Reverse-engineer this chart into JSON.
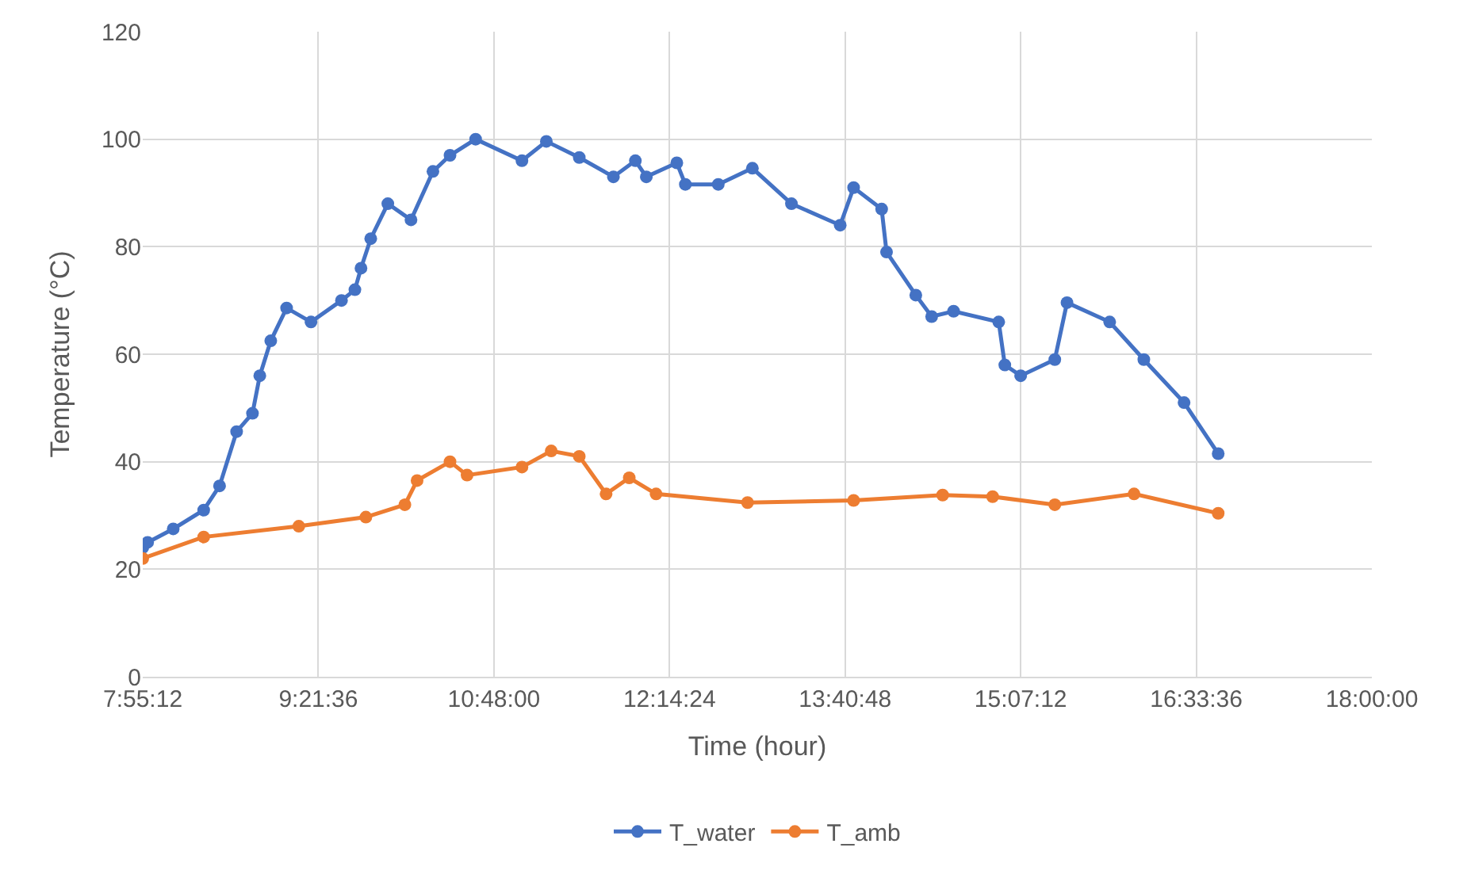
{
  "chart_data": {
    "type": "line",
    "xlabel": "Time (hour)",
    "ylabel": "Temperature (°C)",
    "xlim": [
      7.92,
      18.0
    ],
    "xticks": [
      {
        "value": 7.92,
        "label": "7:55:12"
      },
      {
        "value": 9.36,
        "label": "9:21:36"
      },
      {
        "value": 10.8,
        "label": "10:48:00"
      },
      {
        "value": 12.24,
        "label": "12:14:24"
      },
      {
        "value": 13.68,
        "label": "13:40:48"
      },
      {
        "value": 15.12,
        "label": "15:07:12"
      },
      {
        "value": 16.56,
        "label": "16:33:36"
      },
      {
        "value": 18.0,
        "label": "18:00:00"
      }
    ],
    "ylim": [
      0,
      120
    ],
    "yticks": [
      0,
      20,
      40,
      60,
      80,
      100,
      120
    ],
    "grid": true,
    "legend": "bottom",
    "marker": "circle",
    "line_style": "solid",
    "series": [
      {
        "name": "T_water",
        "color": "#4472c4",
        "x": [
          7.92,
          7.96,
          8.17,
          8.42,
          8.55,
          8.69,
          8.82,
          8.88,
          8.97,
          9.1,
          9.3,
          9.55,
          9.66,
          9.71,
          9.79,
          9.93,
          10.12,
          10.3,
          10.44,
          10.65,
          11.03,
          11.23,
          11.5,
          11.78,
          11.96,
          12.05,
          12.3,
          12.37,
          12.64,
          12.92,
          13.24,
          13.64,
          13.75,
          13.98,
          14.02,
          14.26,
          14.39,
          14.57,
          14.94,
          14.99,
          15.12,
          15.4,
          15.5,
          15.85,
          16.13,
          16.46,
          16.74
        ],
        "values": [
          24,
          25,
          27.5,
          31,
          35.5,
          45.6,
          49,
          56,
          62.5,
          68.6,
          66,
          70,
          72,
          76,
          81.5,
          88,
          85,
          94,
          97,
          100,
          96,
          99.6,
          96.6,
          93,
          96,
          93,
          95.6,
          91.6,
          91.6,
          94.6,
          88,
          84,
          91,
          87,
          79,
          71,
          67,
          68,
          66,
          58,
          56,
          59,
          69.6,
          66,
          59,
          51,
          41.5
        ]
      },
      {
        "name": "T_amb",
        "color": "#ed7d31",
        "x": [
          7.92,
          8.42,
          9.2,
          9.75,
          10.07,
          10.17,
          10.44,
          10.58,
          11.03,
          11.27,
          11.5,
          11.72,
          11.91,
          12.13,
          12.88,
          13.75,
          14.48,
          14.89,
          15.4,
          16.05,
          16.74
        ],
        "values": [
          22,
          26,
          28,
          29.7,
          32,
          36.5,
          40,
          37.5,
          39,
          42,
          41,
          34,
          37,
          34,
          32.4,
          32.8,
          33.8,
          33.5,
          32,
          34,
          30.4
        ]
      }
    ]
  }
}
